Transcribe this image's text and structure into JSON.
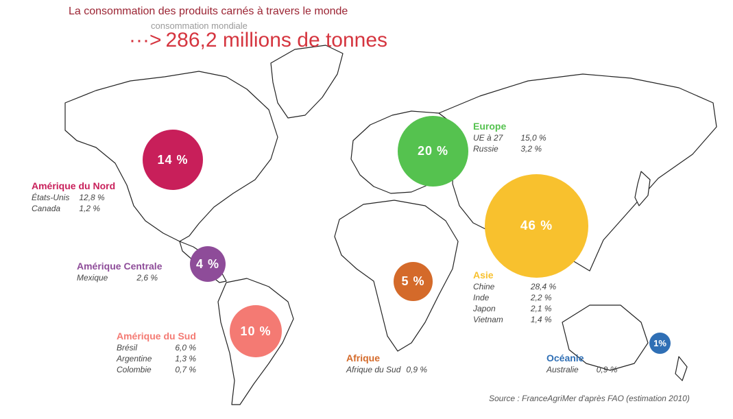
{
  "title": "La consommation des produits carnés à travers le monde",
  "subtitle": "consommation mondiale",
  "total": {
    "arrow": "···>",
    "value": "286,2 millions de tonnes"
  },
  "colors": {
    "title": "#9b2433",
    "amerique_nord": "#c81f5a",
    "amerique_centrale": "#8e4c99",
    "amerique_sud": "#f47a73",
    "europe": "#55c24f",
    "asie": "#f8c12e",
    "afrique": "#d46a2a",
    "oceanie": "#2f6fb5"
  },
  "regions": {
    "amerique_nord": {
      "name": "Amérique du Nord",
      "share": "14 %",
      "share_value": 14,
      "rows": [
        {
          "country": "États-Unis",
          "value": "12,8 %"
        },
        {
          "country": "Canada",
          "value": "1,2 %"
        }
      ]
    },
    "amerique_centrale": {
      "name": "Amérique Centrale",
      "share": "4 %",
      "share_value": 4,
      "rows": [
        {
          "country": "Mexique",
          "value": "2,6 %"
        }
      ]
    },
    "amerique_sud": {
      "name": "Amérique du Sud",
      "share": "10 %",
      "share_value": 10,
      "rows": [
        {
          "country": "Brésil",
          "value": "6,0 %"
        },
        {
          "country": "Argentine",
          "value": "1,3 %"
        },
        {
          "country": "Colombie",
          "value": "0,7 %"
        }
      ]
    },
    "europe": {
      "name": "Europe",
      "share": "20 %",
      "share_value": 20,
      "rows": [
        {
          "country": "UE à 27",
          "value": "15,0 %"
        },
        {
          "country": "Russie",
          "value": "3,2 %"
        }
      ]
    },
    "asie": {
      "name": "Asie",
      "share": "46 %",
      "share_value": 46,
      "rows": [
        {
          "country": "Chine",
          "value": "28,4 %"
        },
        {
          "country": "Inde",
          "value": "2,2 %"
        },
        {
          "country": "Japon",
          "value": "2,1 %"
        },
        {
          "country": "Vietnam",
          "value": "1,4 %"
        }
      ]
    },
    "afrique": {
      "name": "Afrique",
      "share": "5 %",
      "share_value": 5,
      "rows": [
        {
          "country": "Afrique du Sud",
          "value": "0,9 %"
        }
      ]
    },
    "oceanie": {
      "name": "Océanie",
      "share": "1%",
      "share_value": 1,
      "rows": [
        {
          "country": "Australie",
          "value": "0,9 %"
        }
      ]
    }
  },
  "source": "Source : FranceAgriMer d'après FAO (estimation 2010)"
}
